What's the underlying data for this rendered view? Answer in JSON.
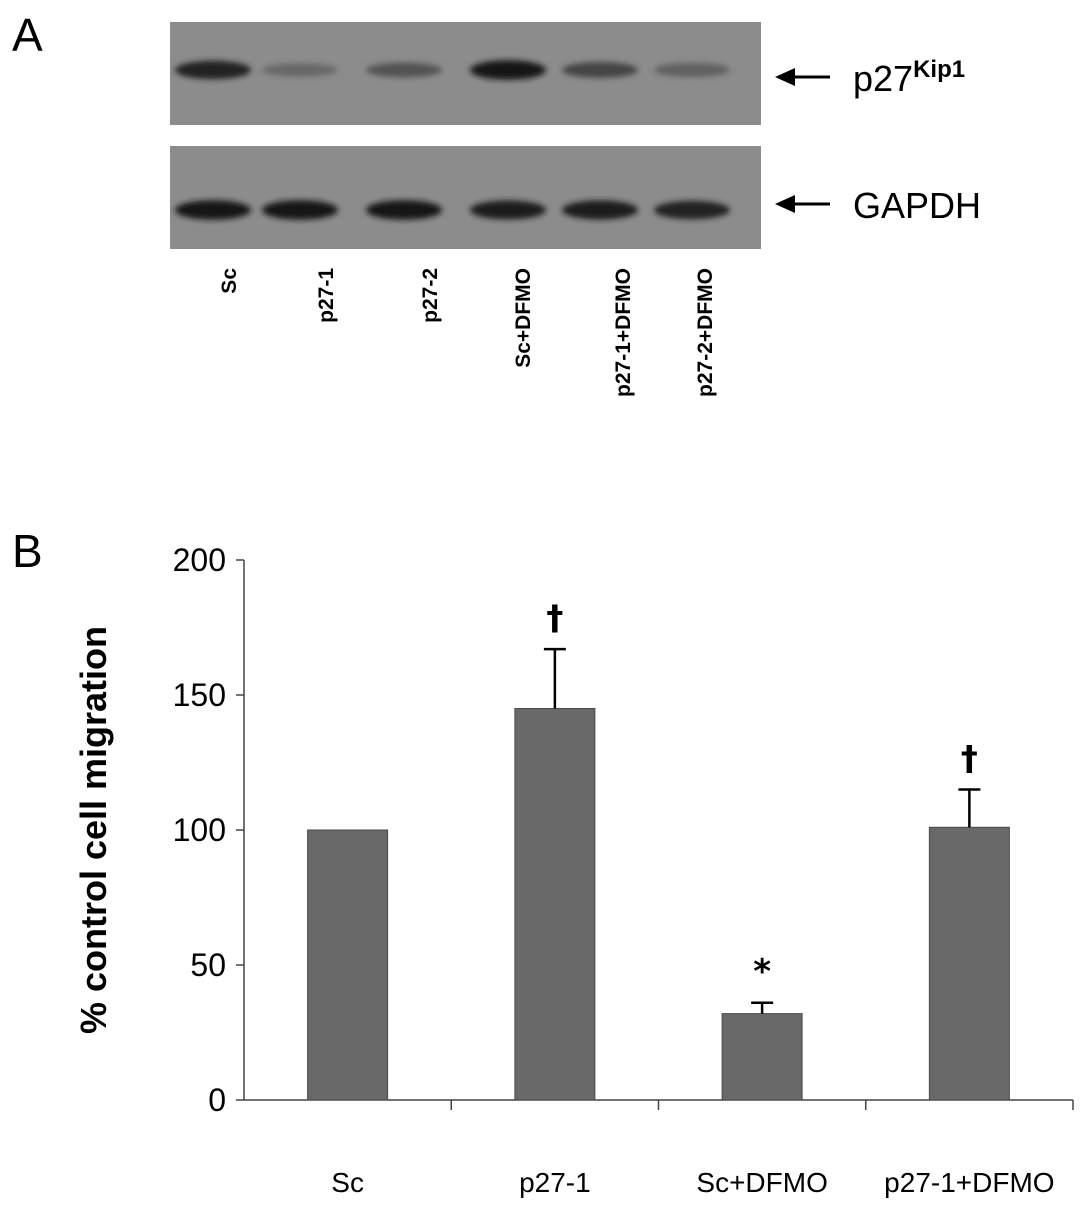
{
  "panel_a": {
    "letter": "A",
    "blot_rows": [
      {
        "label_main": "p27",
        "label_sup": "Kip1",
        "band_intensity": [
          0.85,
          0.35,
          0.5,
          0.95,
          0.6,
          0.4
        ]
      },
      {
        "label_main": "GAPDH",
        "label_sup": "",
        "band_intensity": [
          0.95,
          0.95,
          0.95,
          0.9,
          0.92,
          0.85
        ]
      }
    ],
    "lanes": [
      "Sc",
      "p27-1",
      "p27-2",
      "Sc+DFMO",
      "p27-1+DFMO",
      "p27-2+DFMO"
    ]
  },
  "chart_data": {
    "type": "bar",
    "panel_letter": "B",
    "categories": [
      "Sc",
      "p27-1",
      "Sc+DFMO",
      "p27-1+DFMO"
    ],
    "values": [
      100,
      145,
      32,
      101
    ],
    "errors": [
      0,
      22,
      4,
      14
    ],
    "annotations": [
      "",
      "†",
      "*",
      "†"
    ],
    "ylabel": "% control cell migration",
    "ylim": [
      0,
      200
    ],
    "yticks": [
      0,
      50,
      100,
      150,
      200
    ],
    "bar_color": "#696969",
    "grid": false
  }
}
